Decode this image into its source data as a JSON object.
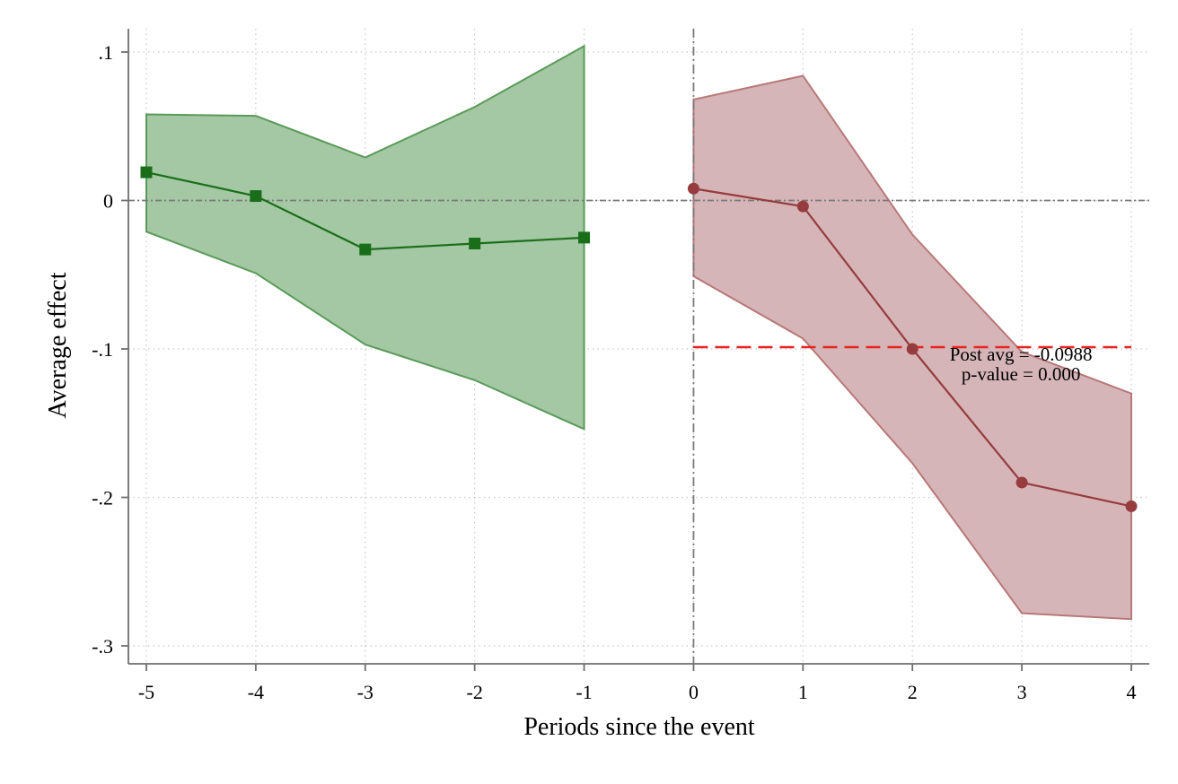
{
  "chart_data": {
    "type": "line",
    "xlabel": "Periods since the event",
    "ylabel": "Average effect",
    "xlim": [
      -5,
      4
    ],
    "ylim": [
      -0.3,
      0.1
    ],
    "x_ticks": [
      -5,
      -4,
      -3,
      -2,
      -1,
      0,
      1,
      2,
      3,
      4
    ],
    "x_tick_labels": [
      "-5",
      "-4",
      "-3",
      "-2",
      "-1",
      "0",
      "1",
      "2",
      "3",
      "4"
    ],
    "y_ticks": [
      0.1,
      0,
      -0.1,
      -0.2,
      -0.3
    ],
    "y_tick_labels": [
      ".1",
      "0",
      "-.1",
      "-.2",
      "-.3"
    ],
    "grid": true,
    "reference_lines": {
      "zero_y": 0,
      "event_x": 0,
      "post_avg_y": -0.0988,
      "post_avg_x_range": [
        0,
        4
      ]
    },
    "annotation": {
      "lines": [
        "Post avg = -0.0988",
        "p-value = 0.000"
      ],
      "anchor": [
        3,
        -0.1
      ]
    },
    "series": [
      {
        "key": "pre",
        "marker": "square",
        "color": "#1a6e1a",
        "band_fill": "#a3c8a3",
        "band_stroke": "#5a9a5a",
        "x": [
          -5,
          -4,
          -3,
          -2,
          -1
        ],
        "values": [
          0.019,
          0.003,
          -0.033,
          -0.029,
          -0.025
        ],
        "ci_low": [
          -0.021,
          -0.049,
          -0.097,
          -0.121,
          -0.154
        ],
        "ci_high": [
          0.058,
          0.057,
          0.029,
          0.063,
          0.104
        ]
      },
      {
        "key": "post",
        "marker": "circle",
        "color": "#963c3e",
        "band_fill": "#d6b5b8",
        "band_stroke": "#b87878",
        "x": [
          0,
          1,
          2,
          3,
          4
        ],
        "values": [
          0.008,
          -0.004,
          -0.1,
          -0.19,
          -0.206
        ],
        "ci_low": [
          -0.051,
          -0.093,
          -0.177,
          -0.278,
          -0.282
        ],
        "ci_high": [
          0.068,
          0.084,
          -0.023,
          -0.102,
          -0.13
        ]
      }
    ]
  }
}
